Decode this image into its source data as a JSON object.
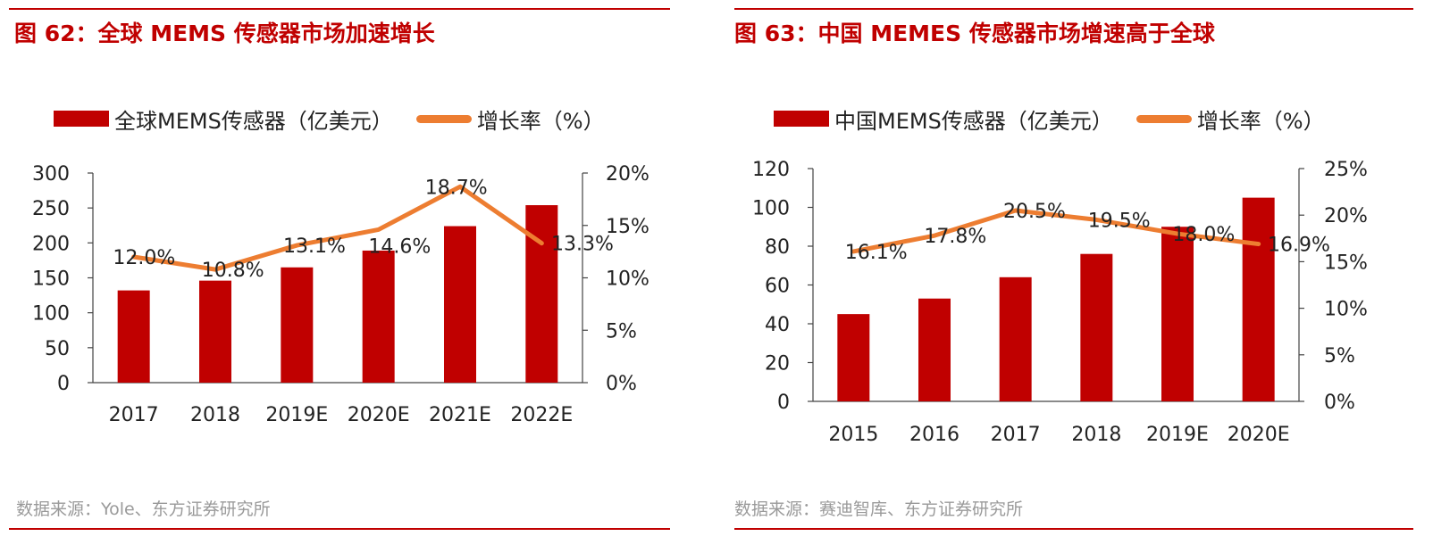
{
  "colors": {
    "accent": "#c00000",
    "line": "#ed7d31",
    "source": "#9a9a9a"
  },
  "left": {
    "title": "图 62：全球 MEMS 传感器市场加速增长",
    "legend_bar": "全球MEMS传感器（亿美元）",
    "legend_line": "增长率（%）",
    "source": "数据来源：Yole、东方证券研究所"
  },
  "right": {
    "title": "图 63：中国 MEMES 传感器市场增速高于全球",
    "legend_bar": "中国MEMS传感器（亿美元）",
    "legend_line": "增长率（%）",
    "source": "数据来源：赛迪智库、东方证券研究所"
  },
  "chart_data": [
    {
      "type": "bar+line",
      "categories": [
        "2017",
        "2018",
        "2019E",
        "2020E",
        "2021E",
        "2022E"
      ],
      "series": [
        {
          "name": "全球MEMS传感器（亿美元）",
          "type": "bar",
          "axis": "left",
          "values": [
            132,
            146,
            165,
            189,
            224,
            254
          ]
        },
        {
          "name": "增长率（%）",
          "type": "line",
          "axis": "right",
          "values": [
            12.0,
            10.8,
            13.1,
            14.6,
            18.7,
            13.3
          ],
          "labels": [
            "12.0%",
            "10.8%",
            "13.1%",
            "14.6%",
            "18.7%",
            "13.3%"
          ]
        }
      ],
      "ylim_left": [
        0,
        300
      ],
      "yticks_left": [
        "0",
        "50",
        "100",
        "150",
        "200",
        "250",
        "300"
      ],
      "ylim_right": [
        0,
        20
      ],
      "yticks_right": [
        "0%",
        "5%",
        "10%",
        "15%",
        "20%"
      ]
    },
    {
      "type": "bar+line",
      "categories": [
        "2015",
        "2016",
        "2017",
        "2018",
        "2019E",
        "2020E"
      ],
      "series": [
        {
          "name": "中国MEMS传感器（亿美元）",
          "type": "bar",
          "axis": "left",
          "values": [
            45,
            53,
            64,
            76,
            90,
            105
          ]
        },
        {
          "name": "增长率（%）",
          "type": "line",
          "axis": "right",
          "values": [
            16.1,
            17.8,
            20.5,
            19.5,
            18.0,
            16.9
          ],
          "labels": [
            "16.1%",
            "17.8%",
            "20.5%",
            "19.5%",
            "18.0%",
            "16.9%"
          ]
        }
      ],
      "ylim_left": [
        0,
        120
      ],
      "yticks_left": [
        "0",
        "20",
        "40",
        "60",
        "80",
        "100",
        "120"
      ],
      "ylim_right": [
        0,
        25
      ],
      "yticks_right": [
        "0%",
        "5%",
        "10%",
        "15%",
        "20%",
        "25%"
      ]
    }
  ]
}
